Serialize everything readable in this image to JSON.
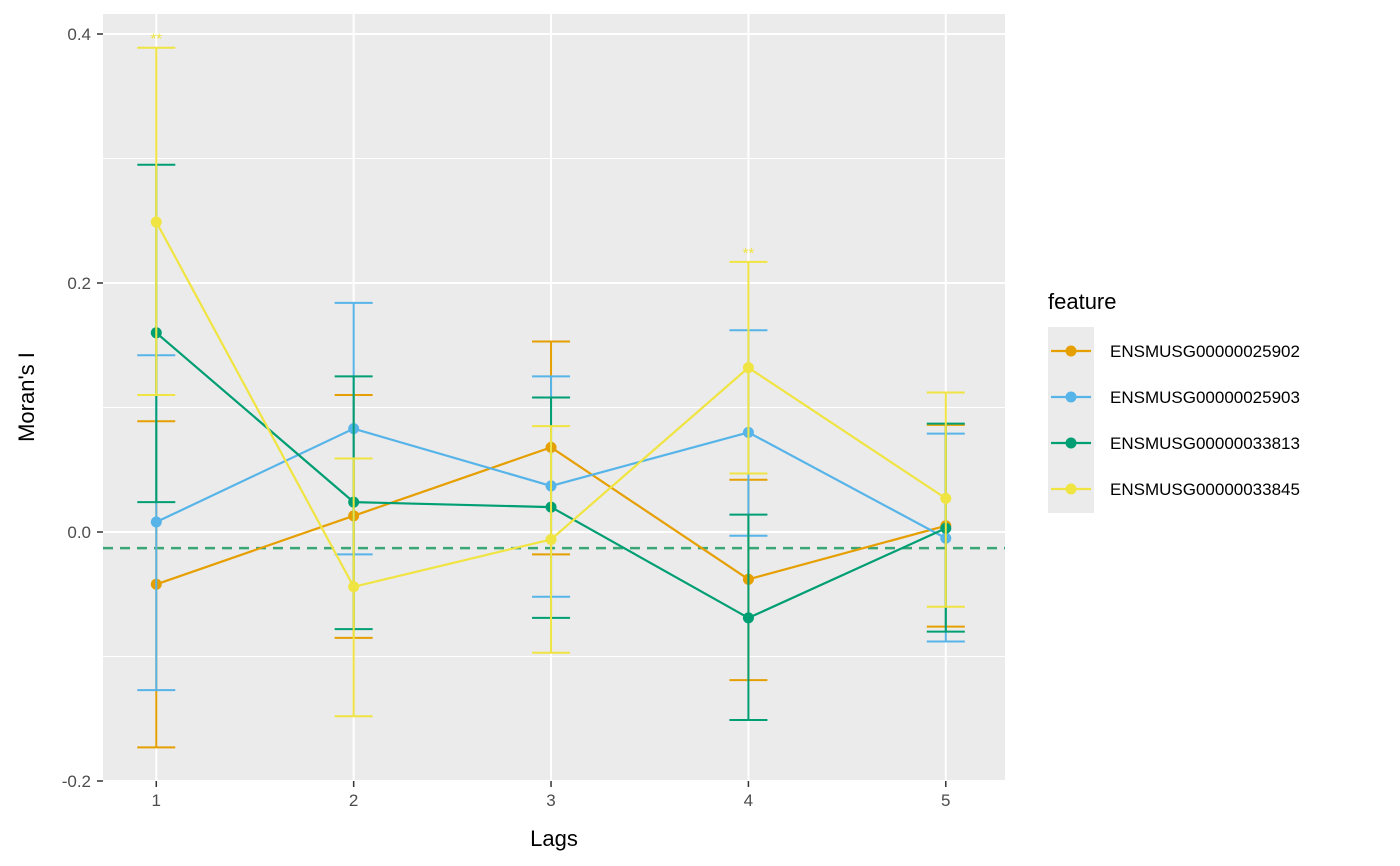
{
  "chart_data": {
    "type": "line",
    "xlabel": "Lags",
    "ylabel": "Moran's I",
    "x": [
      1,
      2,
      3,
      4,
      5
    ],
    "x_ticks": [
      "1",
      "2",
      "3",
      "4",
      "5"
    ],
    "xlim": [
      0.73,
      5.3
    ],
    "ylim": [
      -0.2,
      0.4
    ],
    "y_ticks": [
      -0.2,
      0.0,
      0.2,
      0.4
    ],
    "y_tick_labels": [
      "-0.2",
      "0.0",
      "0.2",
      "0.4"
    ],
    "grid": true,
    "legend": {
      "title": "feature",
      "position": "right"
    },
    "reference_line": {
      "y": -0.013,
      "style": "dashed",
      "color": "#3aa676"
    },
    "series": [
      {
        "name": "ENSMUSG00000025902",
        "color": "#E69F00",
        "values": [
          -0.042,
          0.013,
          0.068,
          -0.038,
          0.005
        ],
        "lower": [
          -0.173,
          -0.085,
          -0.018,
          -0.119,
          -0.076
        ],
        "upper": [
          0.089,
          0.11,
          0.153,
          0.042,
          0.086
        ],
        "annotations": [
          "",
          "",
          "",
          "",
          ""
        ]
      },
      {
        "name": "ENSMUSG00000025903",
        "color": "#56B4E9",
        "values": [
          0.008,
          0.083,
          0.037,
          0.08,
          -0.005
        ],
        "lower": [
          -0.127,
          -0.018,
          -0.052,
          -0.003,
          -0.088
        ],
        "upper": [
          0.142,
          0.184,
          0.125,
          0.162,
          0.079
        ],
        "annotations": [
          "",
          "",
          "",
          "",
          ""
        ]
      },
      {
        "name": "ENSMUSG00000033813",
        "color": "#009E73",
        "values": [
          0.16,
          0.024,
          0.02,
          -0.069,
          0.003
        ],
        "lower": [
          0.024,
          -0.078,
          -0.069,
          -0.151,
          -0.08
        ],
        "upper": [
          0.295,
          0.125,
          0.108,
          0.014,
          0.087
        ],
        "annotations": [
          "",
          "",
          "",
          "",
          ""
        ]
      },
      {
        "name": "ENSMUSG00000033845",
        "color": "#F0E442",
        "values": [
          0.249,
          -0.044,
          -0.006,
          0.132,
          0.027
        ],
        "lower": [
          0.11,
          -0.148,
          -0.097,
          0.047,
          -0.06
        ],
        "upper": [
          0.389,
          0.059,
          0.085,
          0.217,
          0.112
        ],
        "annotations": [
          "**",
          "",
          "",
          "**",
          ""
        ]
      }
    ]
  }
}
